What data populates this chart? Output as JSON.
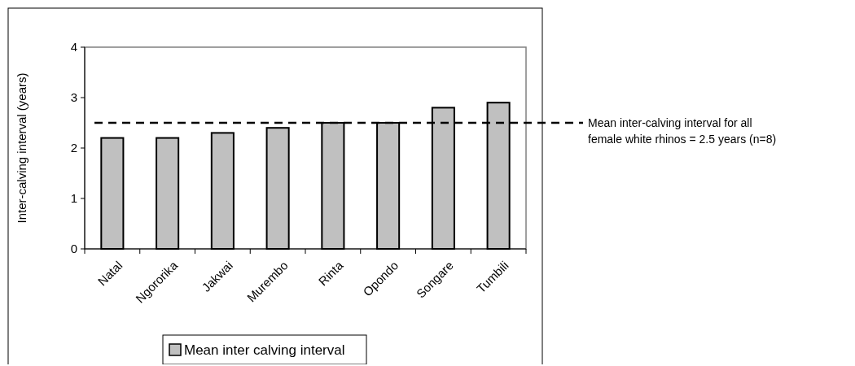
{
  "chart_data": {
    "type": "bar",
    "ylabel": "Inter-calving interval (years)",
    "categories": [
      "Natal",
      "Ngororika",
      "Jakwai",
      "Murembo",
      "Rinta",
      "Opondo",
      "Songare",
      "Tumbili"
    ],
    "series": [
      {
        "name": "Mean inter calving interval",
        "color": "#c0c0c0",
        "values": [
          2.2,
          2.2,
          2.3,
          2.4,
          2.5,
          2.5,
          2.8,
          2.9
        ]
      }
    ],
    "ylim": [
      0,
      4
    ],
    "yticks": [
      0,
      1,
      2,
      3,
      4
    ],
    "ref_lines": [
      {
        "axis": "y",
        "value": 2.5,
        "label": "Mean inter-calving interval for all female white rhinos = 2.5 years (n=8)",
        "line_style": "dashed",
        "color": "#000000"
      }
    ],
    "grid": false,
    "legend": "bottom"
  }
}
